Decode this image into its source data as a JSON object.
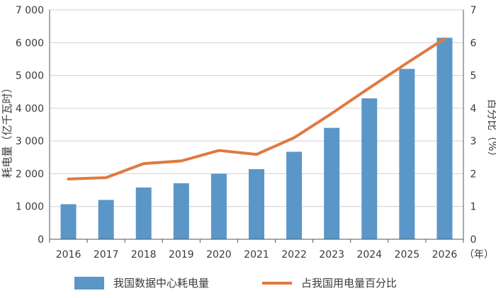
{
  "chart_data": {
    "type": "bar",
    "categories": [
      "2016",
      "2017",
      "2018",
      "2019",
      "2020",
      "2021",
      "2022",
      "2023",
      "2024",
      "2025",
      "2026"
    ],
    "x_unit": "（年）",
    "ylabel_left": "耗电量（亿千瓦时）",
    "ylabel_right": "百分比（%）",
    "ylim_left": [
      0,
      7000
    ],
    "ylim_right": [
      0,
      7
    ],
    "yticks_left": [
      "0",
      "1 000",
      "2 000",
      "3 000",
      "4 000",
      "5 000",
      "6 000",
      "7 000"
    ],
    "yticks_right": [
      "0",
      "1",
      "2",
      "3",
      "4",
      "5",
      "6",
      "7"
    ],
    "grid": true,
    "legend_position": "bottom",
    "colors": {
      "bar": "#5b96c8",
      "line": "#e0793f",
      "grid": "#d0d0d0",
      "axis": "#555555"
    },
    "series": [
      {
        "name": "我国数据中心耗电量",
        "type": "bar",
        "axis": "left",
        "values": [
          1070,
          1200,
          1580,
          1710,
          2000,
          2140,
          2670,
          3400,
          4300,
          5200,
          6150
        ]
      },
      {
        "name": "占我国用电量百分比",
        "type": "line",
        "axis": "right",
        "values": [
          1.84,
          1.88,
          2.31,
          2.39,
          2.71,
          2.59,
          3.1,
          3.84,
          4.62,
          5.38,
          6.12
        ]
      }
    ]
  }
}
